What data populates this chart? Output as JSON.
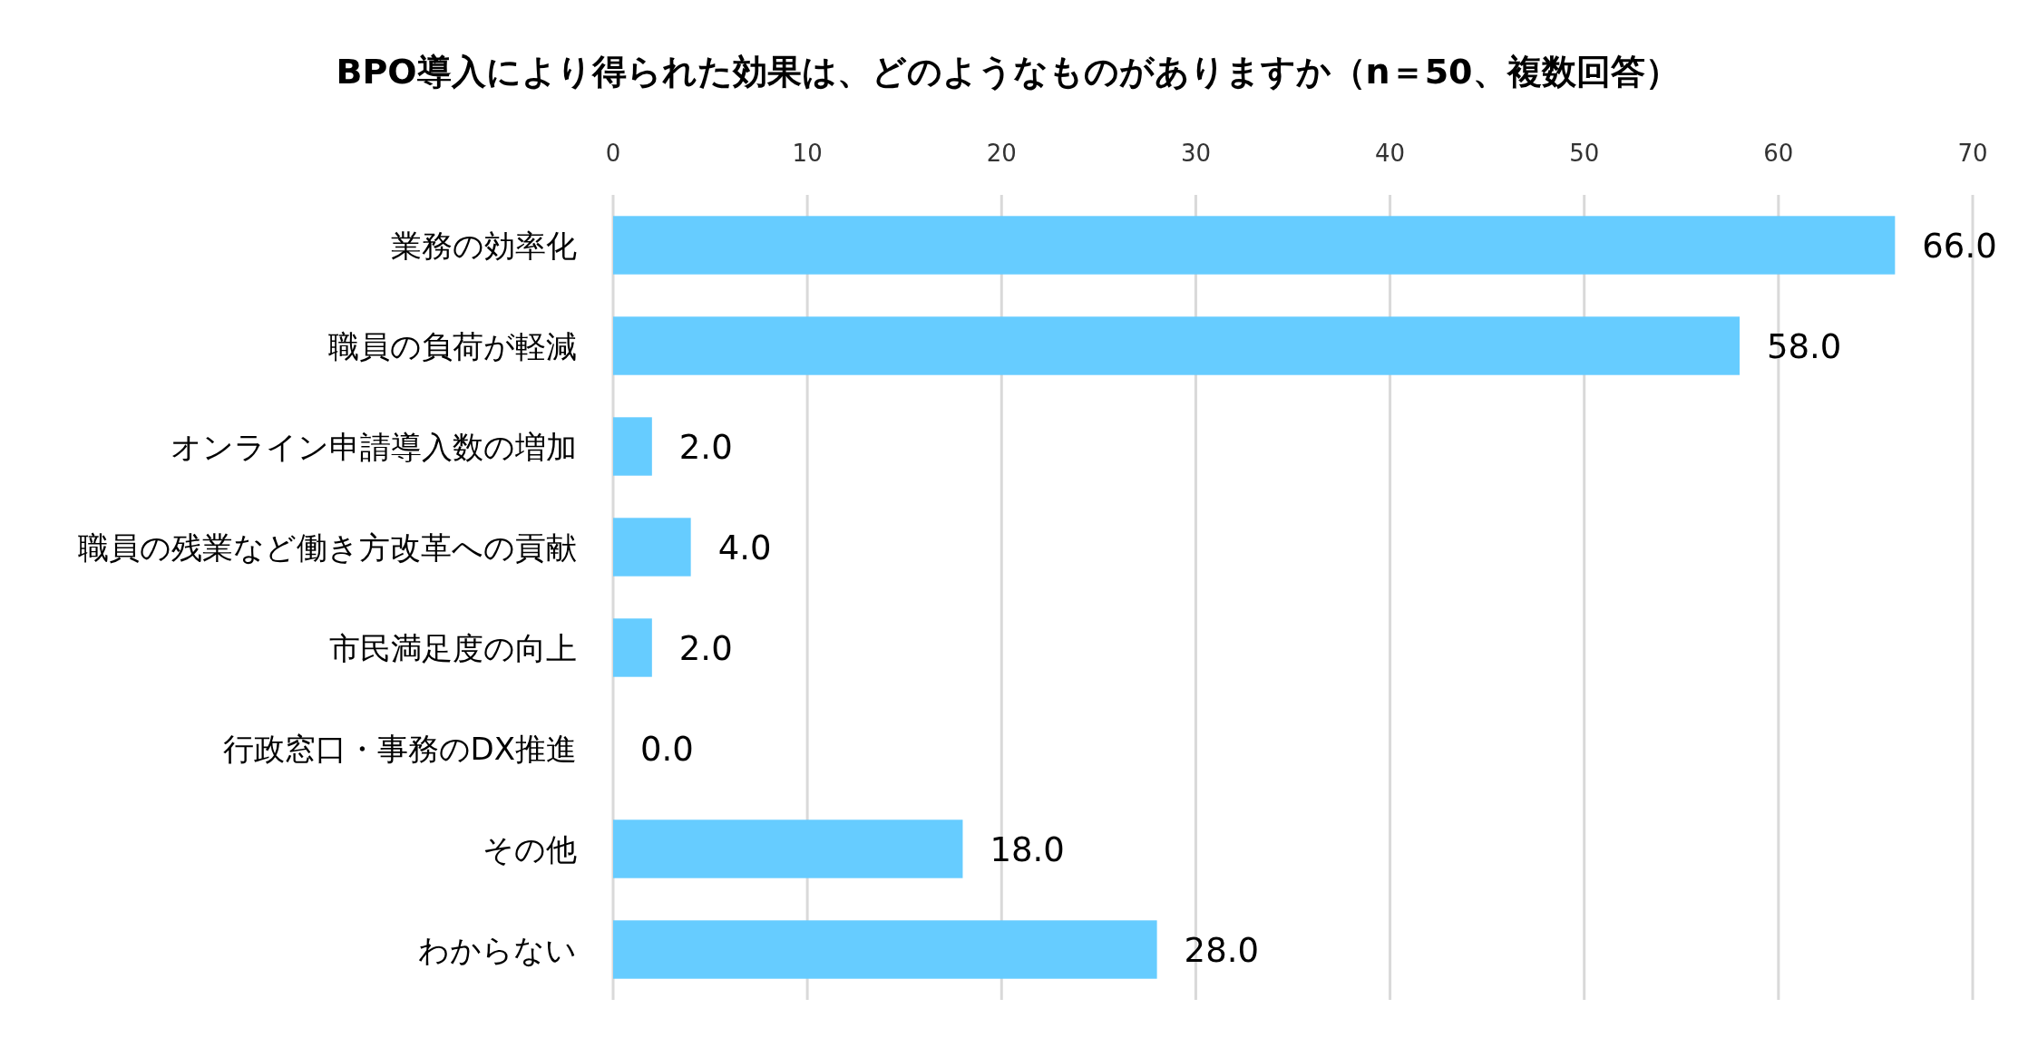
{
  "chart_data": {
    "type": "bar",
    "orientation": "horizontal",
    "title": "BPO導入により得られた効果は、どのようなものがありますか（n＝50、複数回答）",
    "categories": [
      "業務の効率化",
      "職員の負荷が軽減",
      "オンライン申請導入数の増加",
      "職員の残業など働き方改革への貢献",
      "市民満足度の向上",
      "行政窓口・事務のDX推進",
      "その他",
      "わからない"
    ],
    "values": [
      66.0,
      58.0,
      2.0,
      4.0,
      2.0,
      0.0,
      18.0,
      28.0
    ],
    "value_labels": [
      "66.0",
      "58.0",
      "2.0",
      "4.0",
      "2.0",
      "0.0",
      "18.0",
      "28.0"
    ],
    "color": "#66ccff",
    "xlim": [
      0,
      70
    ],
    "xticks": [
      0,
      10,
      20,
      30,
      40,
      50,
      60,
      70
    ],
    "grid": "x"
  }
}
